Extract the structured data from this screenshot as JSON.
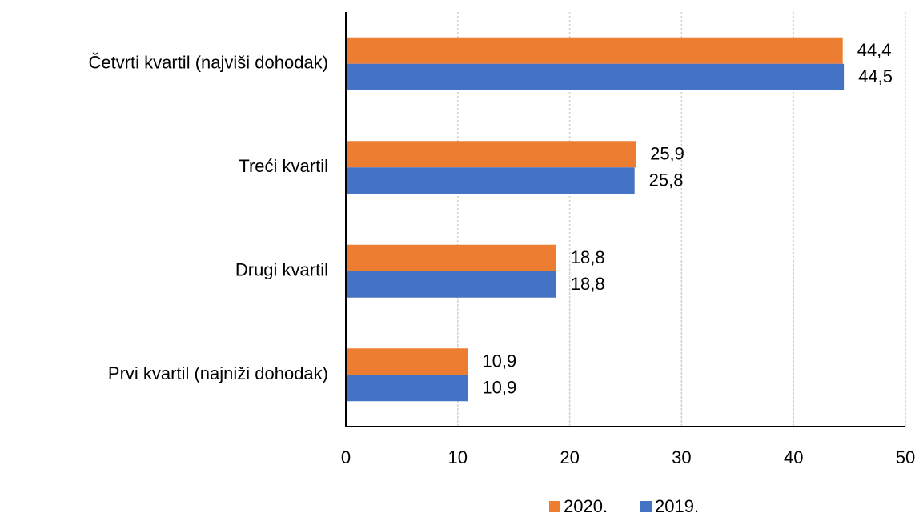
{
  "chart_data": {
    "type": "barh",
    "categories": [
      "Četvrti kvartil (najviši dohodak)",
      "Treći kvartil",
      "Drugi kvartil",
      "Prvi kvartil (najniži dohodak)"
    ],
    "series": [
      {
        "name": "2020.",
        "color": "#ED7D31",
        "values": [
          44.4,
          25.9,
          18.8,
          10.9
        ],
        "value_labels": [
          "44,4",
          "25,9",
          "18,8",
          "10,9"
        ]
      },
      {
        "name": "2019.",
        "color": "#4472C4",
        "values": [
          44.5,
          25.8,
          18.8,
          10.9
        ],
        "value_labels": [
          "44,5",
          "25,8",
          "18,8",
          "10,9"
        ]
      }
    ],
    "xlim": [
      0,
      50
    ],
    "xticks": [
      0,
      10,
      20,
      30,
      40,
      50
    ],
    "grid": true,
    "legend": "bottom"
  }
}
